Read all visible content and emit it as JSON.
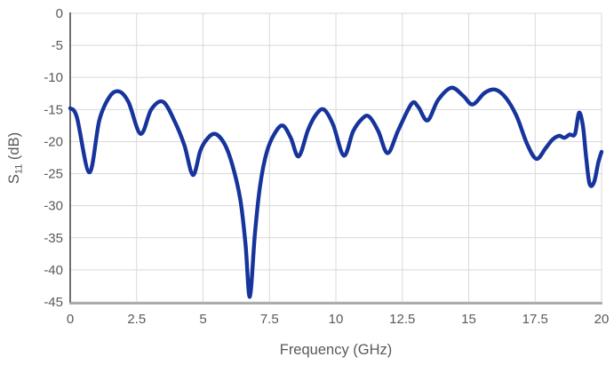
{
  "chart_data": {
    "type": "line",
    "title": "",
    "xlabel": "Frequency (GHz)",
    "ylabel": "S11 (dB)",
    "ylabel_parts": {
      "base": "S",
      "sub": "11",
      "unit": " (dB)"
    },
    "xlim": [
      0,
      20
    ],
    "ylim": [
      -45,
      0
    ],
    "x_ticks": [
      "0",
      "2.5",
      "5",
      "7.5",
      "10",
      "12.5",
      "15",
      "17.5",
      "20"
    ],
    "x_tick_values": [
      0,
      2.5,
      5,
      7.5,
      10,
      12.5,
      15,
      17.5,
      20
    ],
    "y_ticks": [
      "0",
      "-5",
      "-10",
      "-15",
      "-20",
      "-25",
      "-30",
      "-35",
      "-40",
      "-45"
    ],
    "y_tick_values": [
      0,
      -5,
      -10,
      -15,
      -20,
      -25,
      -30,
      -35,
      -40,
      -45
    ],
    "grid": true,
    "legend_position": "none",
    "series": [
      {
        "name": "S11",
        "color": "#16349b",
        "points": [
          [
            0,
            -14.8
          ],
          [
            0.25,
            -16.2
          ],
          [
            0.72,
            -24.8
          ],
          [
            1.1,
            -16.6
          ],
          [
            1.5,
            -12.9
          ],
          [
            1.85,
            -12.2
          ],
          [
            2.2,
            -13.9
          ],
          [
            2.65,
            -18.8
          ],
          [
            3.05,
            -15.0
          ],
          [
            3.5,
            -13.8
          ],
          [
            3.95,
            -17.0
          ],
          [
            4.3,
            -20.6
          ],
          [
            4.62,
            -25.2
          ],
          [
            4.9,
            -21.4
          ],
          [
            5.15,
            -19.6
          ],
          [
            5.45,
            -18.8
          ],
          [
            5.8,
            -20.3
          ],
          [
            6.1,
            -23.6
          ],
          [
            6.4,
            -29.0
          ],
          [
            6.6,
            -36.0
          ],
          [
            6.76,
            -44.2
          ],
          [
            6.95,
            -34.5
          ],
          [
            7.15,
            -26.8
          ],
          [
            7.4,
            -21.6
          ],
          [
            7.7,
            -18.7
          ],
          [
            8.0,
            -17.5
          ],
          [
            8.3,
            -19.4
          ],
          [
            8.6,
            -22.3
          ],
          [
            8.95,
            -18.2
          ],
          [
            9.25,
            -15.8
          ],
          [
            9.55,
            -15.0
          ],
          [
            9.9,
            -17.4
          ],
          [
            10.3,
            -22.2
          ],
          [
            10.65,
            -18.4
          ],
          [
            11.0,
            -16.4
          ],
          [
            11.25,
            -16.1
          ],
          [
            11.6,
            -18.4
          ],
          [
            11.95,
            -21.8
          ],
          [
            12.35,
            -18.2
          ],
          [
            12.85,
            -14.1
          ],
          [
            13.1,
            -14.6
          ],
          [
            13.45,
            -16.7
          ],
          [
            13.85,
            -13.5
          ],
          [
            14.35,
            -11.6
          ],
          [
            14.8,
            -12.9
          ],
          [
            15.15,
            -14.2
          ],
          [
            15.6,
            -12.4
          ],
          [
            16.0,
            -11.9
          ],
          [
            16.4,
            -13.2
          ],
          [
            16.8,
            -16.0
          ],
          [
            17.2,
            -20.4
          ],
          [
            17.55,
            -22.7
          ],
          [
            17.9,
            -21.0
          ],
          [
            18.15,
            -19.7
          ],
          [
            18.4,
            -19.1
          ],
          [
            18.6,
            -19.4
          ],
          [
            18.8,
            -18.9
          ],
          [
            19.0,
            -18.8
          ],
          [
            19.15,
            -15.5
          ],
          [
            19.3,
            -17.6
          ],
          [
            19.42,
            -22.5
          ],
          [
            19.55,
            -26.6
          ],
          [
            19.72,
            -26.3
          ],
          [
            19.88,
            -23.2
          ],
          [
            20.0,
            -21.6
          ]
        ]
      }
    ]
  },
  "style": {
    "background": "#ffffff",
    "grid_color": "#d9d9d9",
    "left_axis_color": "#6e6e6e",
    "bottom_axis_color": "#a3a3a3",
    "label_color": "#595959",
    "line_color": "#16349b",
    "line_width": 4.4
  }
}
